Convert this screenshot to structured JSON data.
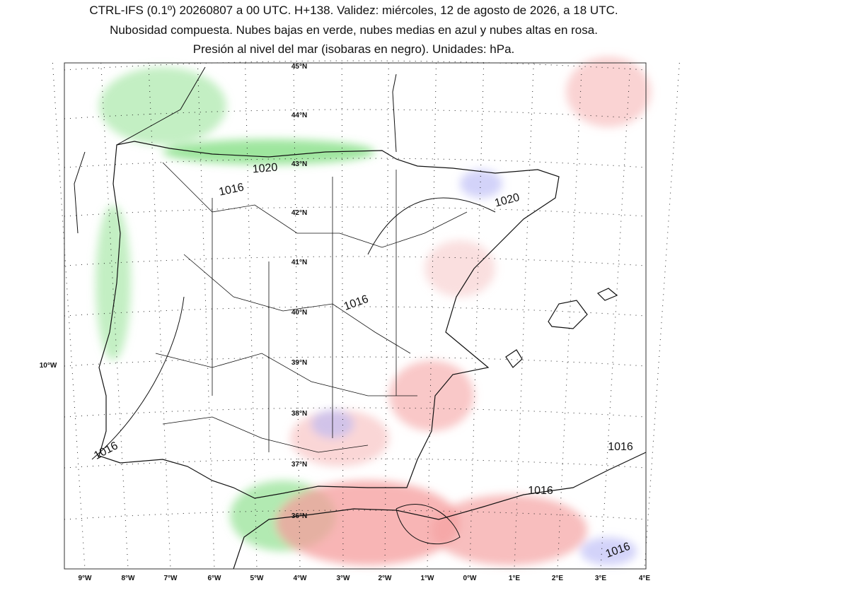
{
  "header": {
    "lines": [
      "CTRL-IFS (0.1º) 20260807 a 00 UTC. H+138. Validez: miércoles, 12 de agosto de 2026, a 18 UTC.",
      "Nubosidad compuesta. Nubes bajas en verde, nubes medias en azul y nubes altas en rosa.",
      "Presión al nivel del mar (isobaras en negro). Unidades: hPa."
    ]
  },
  "map": {
    "lat_labels": [
      "45°N",
      "44°N",
      "43°N",
      "42°N",
      "41°N",
      "40°N",
      "39°N",
      "38°N",
      "37°N",
      "36°N"
    ],
    "side_label": "10°W",
    "lon_labels": [
      "9°W",
      "8°W",
      "7°W",
      "6°W",
      "5°W",
      "4°W",
      "3°W",
      "2°W",
      "1°W",
      "0°W",
      "1°E",
      "2°E",
      "3°E",
      "4°E"
    ],
    "isobar_labels": [
      "1020",
      "1016",
      "1020",
      "1016",
      "1016",
      "1016",
      "1016",
      "1016"
    ]
  }
}
